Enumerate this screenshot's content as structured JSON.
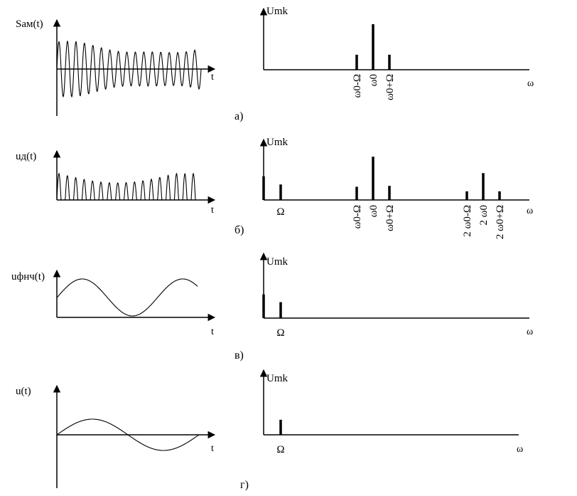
{
  "rows": [
    {
      "id": "a",
      "caption": "а)",
      "time": {
        "ylabel": "Sам(t)",
        "xlabel": "t",
        "signal": "am"
      },
      "spectrum": {
        "ylabel": "Umk",
        "xlabel": "ω",
        "lines": [
          {
            "freq": "ω0-Ω",
            "amp": 0.33,
            "label": "ω0-Ω"
          },
          {
            "freq": "ω0",
            "amp": 1.0,
            "label": "ω0"
          },
          {
            "freq": "ω0+Ω",
            "amp": 0.33,
            "label": "ω0+Ω"
          }
        ]
      }
    },
    {
      "id": "b",
      "caption": "б)",
      "time": {
        "ylabel": "uд(t)",
        "xlabel": "t",
        "signal": "rectified"
      },
      "spectrum": {
        "ylabel": "Umk",
        "xlabel": "ω",
        "lines": [
          {
            "freq": "0",
            "amp": 0.52,
            "label": ""
          },
          {
            "freq": "Ω",
            "amp": 0.34,
            "label": "Ω"
          },
          {
            "freq": "ω0-Ω",
            "amp": 0.29,
            "label": "ω0-Ω"
          },
          {
            "freq": "ω0",
            "amp": 0.95,
            "label": "ω0"
          },
          {
            "freq": "ω0+Ω",
            "amp": 0.31,
            "label": "ω0+Ω"
          },
          {
            "freq": "2ω0-Ω",
            "amp": 0.19,
            "label": "2 ω0-Ω"
          },
          {
            "freq": "2ω0",
            "amp": 0.59,
            "label": "2 ω0"
          },
          {
            "freq": "2ω0+Ω",
            "amp": 0.19,
            "label": "2 ω0+Ω"
          }
        ]
      }
    },
    {
      "id": "v",
      "caption": "в)",
      "time": {
        "ylabel": "uфнч(t)",
        "xlabel": "t",
        "signal": "lowpass"
      },
      "spectrum": {
        "ylabel": "Umk",
        "xlabel": "ω",
        "lines": [
          {
            "freq": "0",
            "amp": 0.52,
            "label": ""
          },
          {
            "freq": "Ω",
            "amp": 0.35,
            "label": "Ω"
          }
        ]
      }
    },
    {
      "id": "g",
      "caption": "г)",
      "time": {
        "ylabel": "u(t)",
        "xlabel": "t",
        "signal": "sine"
      },
      "spectrum": {
        "ylabel": "Umk",
        "xlabel": "ω",
        "lines": [
          {
            "freq": "Ω",
            "amp": 0.33,
            "label": "Ω"
          }
        ]
      }
    }
  ]
}
